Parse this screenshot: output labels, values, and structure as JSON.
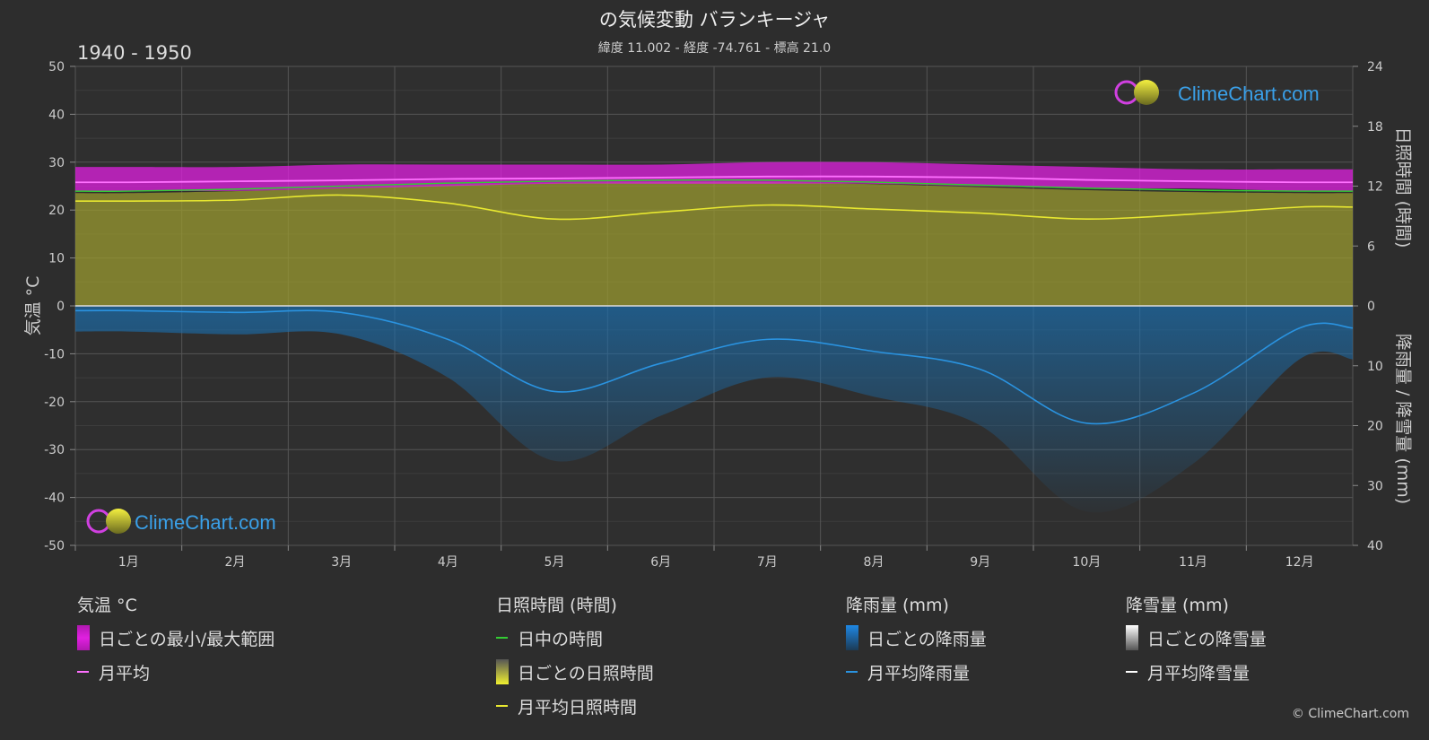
{
  "title": "の気候変動 バランキージャ",
  "subtitle": "緯度 11.002 - 経度 -74.761 - 標高 21.0",
  "period": "1940 - 1950",
  "watermark": "ClimeChart.com",
  "copyright": "© ClimeChart.com",
  "colors": {
    "background": "#2d2d2d",
    "temp_range": "#e020e0",
    "temp_avg": "#ff70ff",
    "daylight": "#33cc33",
    "sunshine_band": "#9a9a30",
    "sunshine_avg": "#e8e830",
    "rain_band": "#1a6fb0",
    "rain_avg": "#2a93e0",
    "snow_avg": "#ffffff"
  },
  "chart_data": {
    "type": "area",
    "months": [
      "1月",
      "2月",
      "3月",
      "4月",
      "5月",
      "6月",
      "7月",
      "8月",
      "9月",
      "10月",
      "11月",
      "12月"
    ],
    "left_axis": {
      "label": "気温 °C",
      "ticks": [
        "50",
        "40",
        "30",
        "20",
        "10",
        "0",
        "-10",
        "-20",
        "-30",
        "-40",
        "-50"
      ],
      "range": [
        -50,
        50
      ]
    },
    "right_axis_top": {
      "label": "日照時間 (時間)",
      "ticks": [
        "24",
        "18",
        "12",
        "6",
        "0"
      ],
      "range": [
        0,
        24
      ]
    },
    "right_axis_bottom": {
      "label": "降雨量 / 降雪量 (mm)",
      "ticks": [
        "10",
        "20",
        "30",
        "40"
      ],
      "range": [
        0,
        40
      ]
    },
    "temperature_daily_min": [
      24.0,
      24.0,
      24.5,
      25.0,
      25.5,
      25.5,
      25.5,
      25.5,
      25.0,
      24.5,
      24.5,
      24.0
    ],
    "temperature_daily_max": [
      29.0,
      29.0,
      29.5,
      29.5,
      29.5,
      29.5,
      30.0,
      30.0,
      29.5,
      29.0,
      28.5,
      28.5
    ],
    "temperature_monthly_avg": [
      25.8,
      26.0,
      26.2,
      26.5,
      26.6,
      26.8,
      27.0,
      27.0,
      26.8,
      26.3,
      26.0,
      25.8
    ],
    "daylight_hours": [
      11.5,
      11.7,
      12.0,
      12.3,
      12.5,
      12.6,
      12.6,
      12.4,
      12.1,
      11.8,
      11.6,
      11.5
    ],
    "sunshine_hours_monthly_avg": [
      10.5,
      10.6,
      11.1,
      10.3,
      8.7,
      9.4,
      10.1,
      9.7,
      9.3,
      8.7,
      9.2,
      9.9
    ],
    "rainfall_mm_monthly_avg": [
      0.8,
      1.1,
      1.1,
      5.6,
      14.3,
      9.6,
      5.6,
      7.6,
      10.6,
      19.6,
      14.6,
      3.7
    ],
    "snowfall_mm_monthly_avg": [
      0,
      0,
      0,
      0,
      0,
      0,
      0,
      0,
      0,
      0,
      0,
      0
    ]
  },
  "legend": {
    "temp": {
      "header": "気温 °C",
      "range": "日ごとの最小/最大範囲",
      "avg": "月平均"
    },
    "sun": {
      "header": "日照時間 (時間)",
      "daylight": "日中の時間",
      "daily": "日ごとの日照時間",
      "avg": "月平均日照時間"
    },
    "rain": {
      "header": "降雨量 (mm)",
      "daily": "日ごとの降雨量",
      "avg": "月平均降雨量"
    },
    "snow": {
      "header": "降雪量 (mm)",
      "daily": "日ごとの降雪量",
      "avg": "月平均降雪量"
    }
  }
}
